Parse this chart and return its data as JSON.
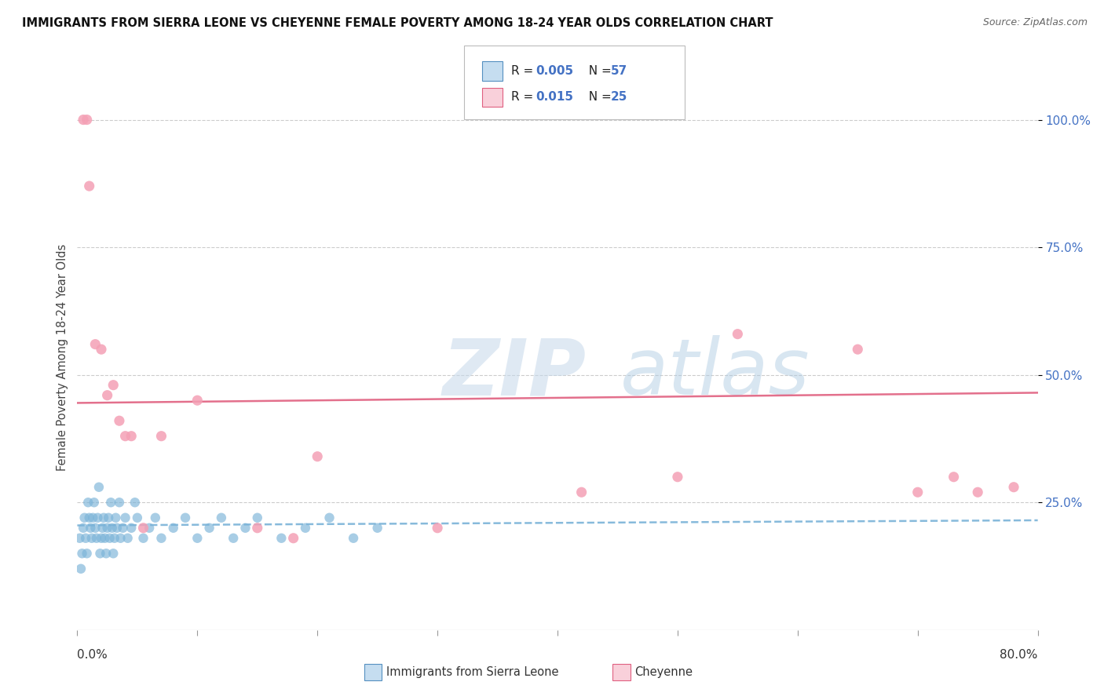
{
  "title": "IMMIGRANTS FROM SIERRA LEONE VS CHEYENNE FEMALE POVERTY AMONG 18-24 YEAR OLDS CORRELATION CHART",
  "source": "Source: ZipAtlas.com",
  "ylabel": "Female Poverty Among 18-24 Year Olds",
  "xlim": [
    0.0,
    80.0
  ],
  "ylim": [
    0.0,
    107.0
  ],
  "ytick_values": [
    25.0,
    50.0,
    75.0,
    100.0
  ],
  "blue_color": "#7ab3d8",
  "blue_edge": "#5590c0",
  "pink_color": "#f4a0b5",
  "pink_edge": "#e06080",
  "trend_blue_color": "#7ab3d8",
  "trend_pink_color": "#e06080",
  "watermark_zip": "ZIP",
  "watermark_atlas": "atlas",
  "blue_scatter_x": [
    0.2,
    0.3,
    0.4,
    0.5,
    0.6,
    0.7,
    0.8,
    0.9,
    1.0,
    1.1,
    1.2,
    1.3,
    1.4,
    1.5,
    1.6,
    1.7,
    1.8,
    1.9,
    2.0,
    2.1,
    2.2,
    2.3,
    2.4,
    2.5,
    2.6,
    2.7,
    2.8,
    2.9,
    3.0,
    3.1,
    3.2,
    3.3,
    3.5,
    3.6,
    3.8,
    4.0,
    4.2,
    4.5,
    4.8,
    5.0,
    5.5,
    6.0,
    6.5,
    7.0,
    8.0,
    9.0,
    10.0,
    11.0,
    12.0,
    13.0,
    14.0,
    15.0,
    17.0,
    19.0,
    21.0,
    23.0,
    25.0
  ],
  "blue_scatter_y": [
    18.0,
    12.0,
    15.0,
    20.0,
    22.0,
    18.0,
    15.0,
    25.0,
    22.0,
    20.0,
    18.0,
    22.0,
    25.0,
    20.0,
    18.0,
    22.0,
    28.0,
    15.0,
    18.0,
    20.0,
    22.0,
    18.0,
    15.0,
    20.0,
    22.0,
    18.0,
    25.0,
    20.0,
    15.0,
    18.0,
    22.0,
    20.0,
    25.0,
    18.0,
    20.0,
    22.0,
    18.0,
    20.0,
    25.0,
    22.0,
    18.0,
    20.0,
    22.0,
    18.0,
    20.0,
    22.0,
    18.0,
    20.0,
    22.0,
    18.0,
    20.0,
    22.0,
    18.0,
    20.0,
    22.0,
    18.0,
    20.0
  ],
  "pink_scatter_x": [
    0.5,
    0.8,
    1.0,
    1.5,
    2.0,
    2.5,
    3.0,
    3.5,
    4.0,
    4.5,
    5.5,
    7.0,
    10.0,
    15.0,
    18.0,
    20.0,
    30.0,
    42.0,
    50.0,
    55.0,
    65.0,
    70.0,
    73.0,
    75.0,
    78.0
  ],
  "pink_scatter_y": [
    100.0,
    100.0,
    87.0,
    56.0,
    55.0,
    46.0,
    48.0,
    41.0,
    38.0,
    38.0,
    20.0,
    38.0,
    45.0,
    20.0,
    18.0,
    34.0,
    20.0,
    27.0,
    30.0,
    58.0,
    55.0,
    27.0,
    30.0,
    27.0,
    28.0
  ],
  "trend_blue_start_y": 20.5,
  "trend_blue_end_y": 21.5,
  "trend_pink_start_y": 44.5,
  "trend_pink_end_y": 46.5
}
